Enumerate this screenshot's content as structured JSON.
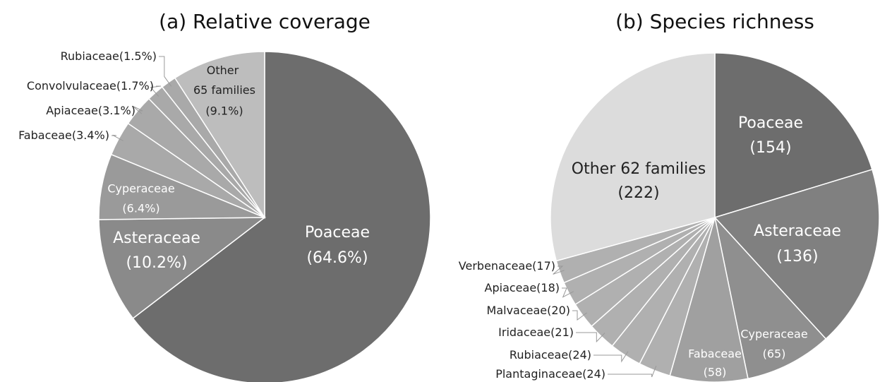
{
  "chart_data": [
    {
      "type": "pie",
      "title": "(a) Relative coverage",
      "categories": [
        "Poaceae",
        "Asteraceae",
        "Cyperaceae",
        "Fabaceae",
        "Apiaceae",
        "Convolvulaceae",
        "Rubiaceae",
        "Other 65 families"
      ],
      "values": [
        64.6,
        10.2,
        6.4,
        3.4,
        3.1,
        1.7,
        1.5,
        9.1
      ],
      "value_labels": [
        "(64.6%)",
        "(10.2%)",
        "(6.4%)",
        "(3.4%)",
        "(3.1%)",
        "(1.7%)",
        "(1.5%)",
        "(9.1%)"
      ],
      "colors": [
        "#6d6d6d",
        "#8a8a8a",
        "#9a9a9a",
        "#a9a9a9",
        "#a9a9a9",
        "#a9a9a9",
        "#a9a9a9",
        "#bdbdbd"
      ]
    },
    {
      "type": "pie",
      "title": "(b) Species richness",
      "categories": [
        "Poaceae",
        "Asteraceae",
        "Cyperaceae",
        "Fabaceae",
        "Plantaginaceae",
        "Rubiaceae",
        "Iridaceae",
        "Malvaceae",
        "Apiaceae",
        "Verbenaceae",
        "Other 62 families"
      ],
      "values": [
        154,
        136,
        65,
        58,
        24,
        24,
        21,
        20,
        18,
        17,
        222
      ],
      "value_labels": [
        "(154)",
        "(136)",
        "(65)",
        "(58)",
        "(24)",
        "(24)",
        "(21)",
        "(20)",
        "(18)",
        "(17)",
        "(222)"
      ],
      "colors": [
        "#6d6d6d",
        "#808080",
        "#8f8f8f",
        "#a0a0a0",
        "#b0b0b0",
        "#b0b0b0",
        "#b0b0b0",
        "#b0b0b0",
        "#b0b0b0",
        "#b0b0b0",
        "#dcdcdc"
      ]
    }
  ]
}
